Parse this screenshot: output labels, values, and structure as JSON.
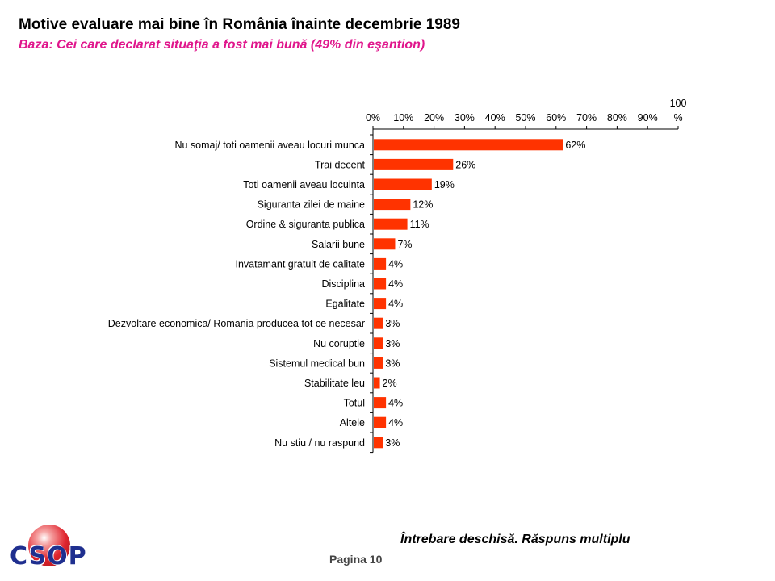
{
  "title": "Motive evaluare mai bine în România înainte decembrie 1989",
  "subtitle": "Baza: Cei care declarat situaţia a fost mai bună (49% din eşantion)",
  "colors": {
    "title": "#000000",
    "subtitle": "#e0168c",
    "bar": "#ff3300"
  },
  "chart_data": {
    "type": "bar",
    "orientation": "horizontal",
    "categories": [
      "Nu somaj/ toti oamenii aveau locuri munca",
      "Trai decent",
      "Toti oamenii aveau locuinta",
      "Siguranta zilei de maine",
      "Ordine & siguranta publica",
      "Salarii bune",
      "Invatamant gratuit de calitate",
      "Disciplina",
      "Egalitate",
      "Dezvoltare economica/ Romania producea tot ce necesar",
      "Nu coruptie",
      "Sistemul medical bun",
      "Stabilitate leu",
      "Totul",
      "Altele",
      "Nu stiu / nu raspund"
    ],
    "values": [
      62,
      26,
      19,
      12,
      11,
      7,
      4,
      4,
      4,
      3,
      3,
      3,
      2,
      4,
      4,
      3
    ],
    "value_labels": [
      "62%",
      "26%",
      "19%",
      "12%",
      "11%",
      "7%",
      "4%",
      "4%",
      "4%",
      "3%",
      "3%",
      "3%",
      "2%",
      "4%",
      "4%",
      "3%"
    ],
    "x_ticks": [
      0,
      10,
      20,
      30,
      40,
      50,
      60,
      70,
      80,
      90,
      100
    ],
    "x_tick_labels": [
      "0%",
      "10%",
      "20%",
      "30%",
      "40%",
      "50%",
      "60%",
      "70%",
      "80%",
      "90%",
      "100 %"
    ],
    "xlim": [
      0,
      100
    ],
    "axis_position": "top",
    "grid": false,
    "legend": "none"
  },
  "footer": {
    "note": "Întrebare deschisă. Răspuns multiplu",
    "page_label": "Pagina",
    "page_number": "10",
    "logo_text": "CSOP"
  }
}
